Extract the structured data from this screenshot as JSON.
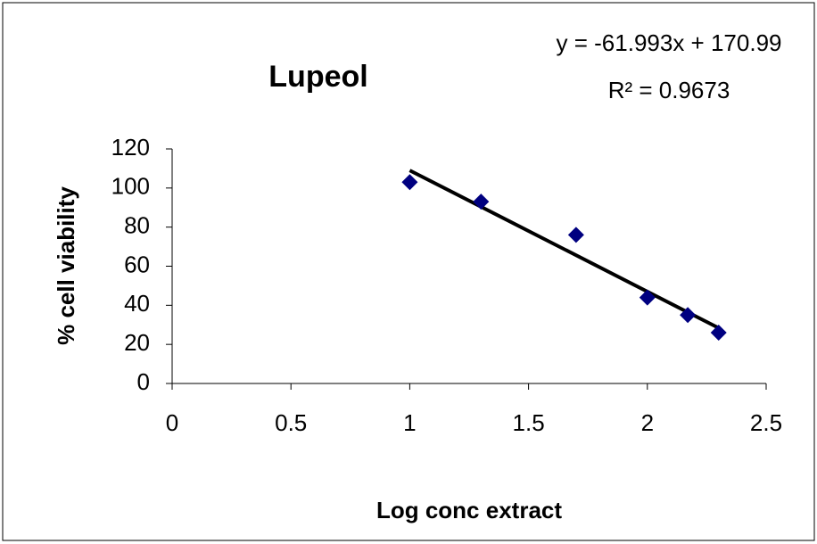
{
  "chart_data": {
    "type": "scatter",
    "title": "Lupeol",
    "x_label": "Log conc extract",
    "y_label": "% cell viability",
    "x": [
      1,
      1.3,
      1.7,
      2,
      2.17,
      2.3
    ],
    "values": [
      103,
      93,
      76,
      44,
      35,
      26
    ],
    "color": "#000080",
    "trendline": {
      "slope": -61.993,
      "intercept": 170.99,
      "color": "#000000",
      "equation": "y = -61.993x + 170.99",
      "r_squared": 0.9673,
      "r_squared_label": "R² = 0.9673"
    },
    "xlim": [
      0,
      2.5
    ],
    "xticks": [
      0,
      0.5,
      1,
      1.5,
      2,
      2.5
    ],
    "ylim": [
      0,
      120
    ],
    "yticks": [
      0,
      20,
      40,
      60,
      80,
      100,
      120
    ],
    "grid": false
  }
}
